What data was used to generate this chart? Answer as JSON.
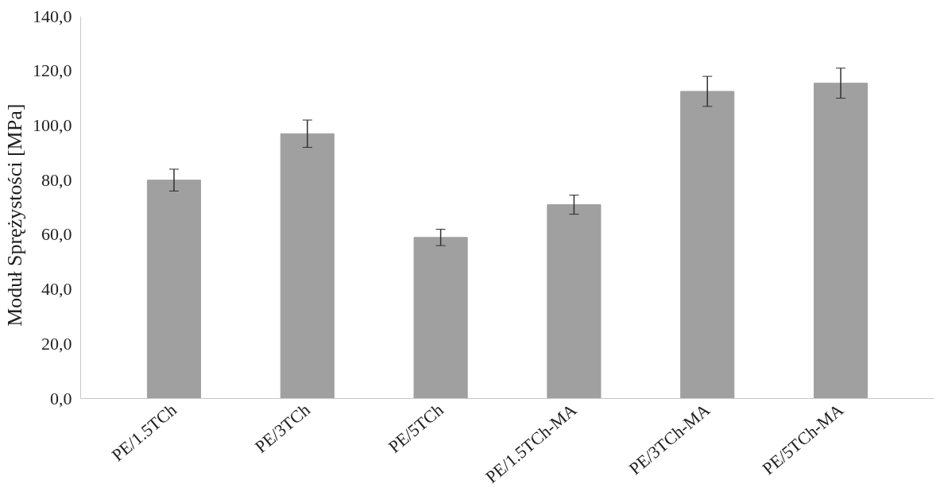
{
  "chart_data": {
    "type": "bar",
    "ylabel": "Moduł  Sprężystości   [MPa]",
    "categories": [
      "PE/1.5TCh",
      "PE/3TCh",
      "PE/5TCh",
      "PE/1.5TCh-MA",
      "PE/3TCh-MA",
      "PE/5TCh-MA"
    ],
    "values": [
      80,
      97,
      59,
      71,
      112.5,
      115.5
    ],
    "errors": [
      4,
      5,
      3,
      3.5,
      5.5,
      5.5
    ],
    "color": "#a0a0a0",
    "ylim": [
      0,
      140
    ],
    "yticks": [
      {
        "value": 0,
        "label": "0,0"
      },
      {
        "value": 20,
        "label": "20,0"
      },
      {
        "value": 40,
        "label": "40,0"
      },
      {
        "value": 60,
        "label": "60,0"
      },
      {
        "value": 80,
        "label": "80,0"
      },
      {
        "value": 100,
        "label": "100,0"
      },
      {
        "value": 120,
        "label": "120,0"
      },
      {
        "value": 140,
        "label": "140,0"
      }
    ],
    "grid": false
  }
}
